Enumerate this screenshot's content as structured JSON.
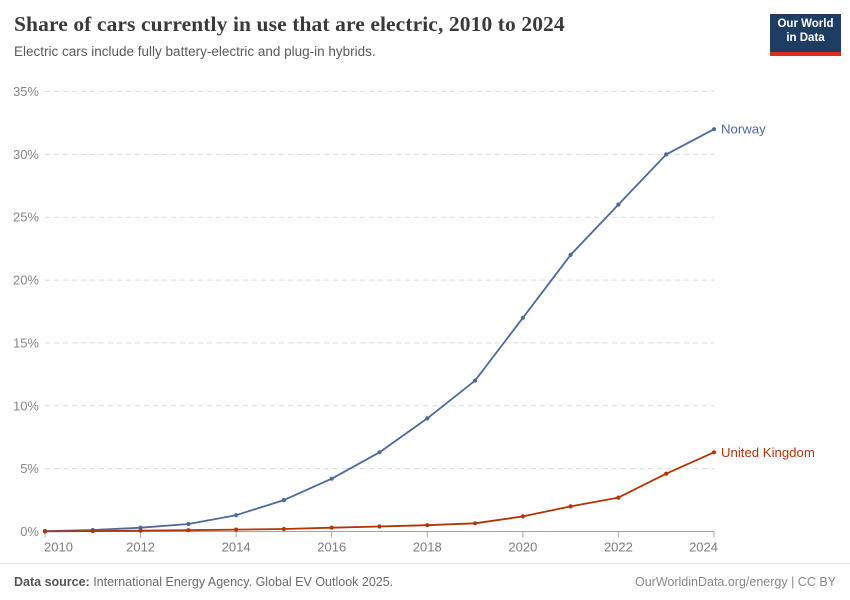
{
  "header": {
    "title": "Share of cars currently in use that are electric, 2010 to 2024",
    "subtitle": "Electric cars include fully battery-electric and plug-in hybrids.",
    "logo": {
      "line1": "Our World",
      "line2": "in Data",
      "bg_color": "#1d3d63",
      "accent_color": "#dc2e1c"
    }
  },
  "chart_data": {
    "type": "line",
    "x": [
      2010,
      2011,
      2012,
      2013,
      2014,
      2015,
      2016,
      2017,
      2018,
      2019,
      2020,
      2021,
      2022,
      2023,
      2024
    ],
    "series": [
      {
        "name": "Norway",
        "color": "#4C6A9C",
        "values": [
          0.03,
          0.12,
          0.3,
          0.6,
          1.3,
          2.5,
          4.2,
          6.3,
          9.0,
          12.0,
          17.0,
          22.0,
          26.0,
          30.0,
          32.0
        ]
      },
      {
        "name": "United Kingdom",
        "color": "#B13507",
        "values": [
          0.01,
          0.03,
          0.06,
          0.1,
          0.15,
          0.2,
          0.3,
          0.4,
          0.5,
          0.65,
          1.2,
          2.0,
          2.7,
          4.6,
          6.3
        ]
      }
    ],
    "title": "Share of cars currently in use that are electric, 2010 to 2024",
    "xlabel": "",
    "ylabel": "",
    "xlim": [
      2010,
      2024
    ],
    "ylim": [
      0,
      35
    ],
    "xticks": [
      2010,
      2012,
      2014,
      2016,
      2018,
      2020,
      2022,
      2024
    ],
    "yticks": [
      0,
      5,
      10,
      15,
      20,
      25,
      30,
      35
    ],
    "ytick_suffix": "%",
    "grid": true,
    "grid_style": "dashed",
    "legend_position": "end-of-line",
    "colors": {
      "gridline": "#dcdcdc",
      "axis_line": "#a3a3a3",
      "tick_mark": "#a8a8a8",
      "tick_label": "#7d7d7d"
    }
  },
  "footer": {
    "source_label": "Data source:",
    "source_text": " International Energy Agency. Global EV Outlook 2025.",
    "attribution": "OurWorldinData.org/energy | CC BY"
  }
}
